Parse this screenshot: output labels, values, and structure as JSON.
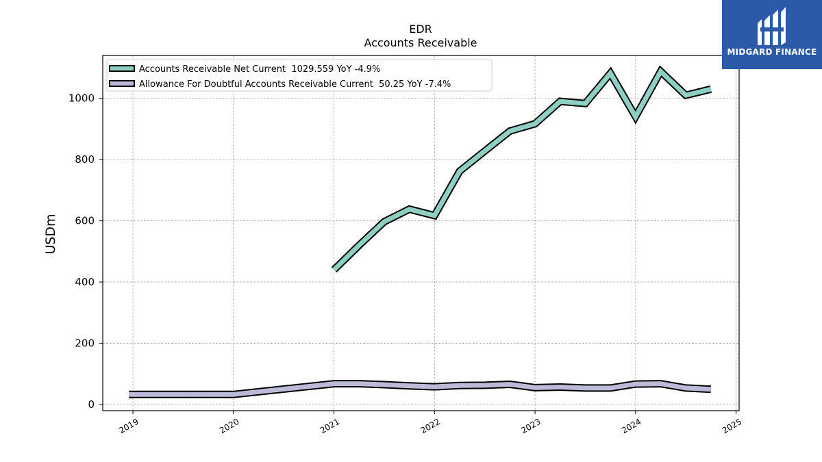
{
  "chart_data": {
    "type": "line",
    "title": "EDR",
    "subtitle": "Accounts Receivable",
    "ylabel": "USDm",
    "xlabel": "",
    "ylim": [
      -20,
      1140
    ],
    "xlim": [
      2018.7,
      2025.03
    ],
    "x_ticks": [
      2019,
      2020,
      2021,
      2022,
      2023,
      2024,
      2025
    ],
    "x_tick_labels": [
      "2019",
      "2020",
      "2021",
      "2022",
      "2023",
      "2024",
      "2025"
    ],
    "y_ticks": [
      0,
      200,
      400,
      600,
      800,
      1000
    ],
    "y_tick_labels": [
      "0",
      "200",
      "400",
      "600",
      "800",
      "1000"
    ],
    "grid": true,
    "legend_position": "upper-left",
    "series": [
      {
        "name": "Accounts Receivable Net Current  1029.559 YoY -4.9%",
        "color": "#8ecfc4",
        "x": [
          2021.0,
          2021.25,
          2021.5,
          2021.75,
          2022.0,
          2022.25,
          2022.5,
          2022.75,
          2023.0,
          2023.25,
          2023.5,
          2023.75,
          2024.0,
          2024.25,
          2024.5,
          2024.75
        ],
        "values": [
          440,
          520,
          597,
          638,
          617,
          762,
          828,
          893,
          917,
          990,
          983,
          1082,
          940,
          1088,
          1010,
          1030
        ]
      },
      {
        "name": "Allowance For Doubtful Accounts Receivable Current  50.25 YoY -7.4%",
        "color": "#bcbad8",
        "x": [
          2018.96,
          2020.0,
          2021.0,
          2021.25,
          2021.5,
          2021.75,
          2022.0,
          2022.25,
          2022.5,
          2022.75,
          2023.0,
          2023.25,
          2023.5,
          2023.75,
          2024.0,
          2024.25,
          2024.5,
          2024.75
        ],
        "values": [
          33,
          33,
          68,
          68,
          65,
          61,
          58,
          62,
          63,
          66,
          55,
          57,
          54,
          54,
          67,
          68,
          54,
          50
        ]
      }
    ]
  },
  "logo": {
    "text": "MIDGARD FINANCE",
    "background": "#2d5aa8"
  }
}
